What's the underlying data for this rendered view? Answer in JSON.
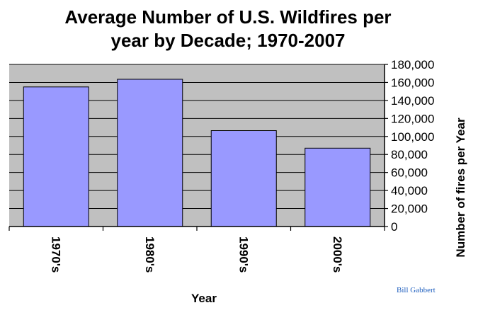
{
  "chart_data": {
    "type": "bar",
    "title_lines": [
      "Average Number of U.S. Wildfires per",
      "year by Decade; 1970-2007"
    ],
    "categories": [
      "1970's",
      "1980's",
      "1990's",
      "2000's"
    ],
    "values": [
      155000,
      163500,
      106500,
      87000
    ],
    "xlabel": "Year",
    "ylabel": "Number of fires per Year",
    "ylim": [
      0,
      180000
    ],
    "y_ticks": [
      0,
      20000,
      40000,
      60000,
      80000,
      100000,
      120000,
      140000,
      160000,
      180000
    ],
    "y_tick_labels": [
      "0",
      "20,000",
      "40,000",
      "60,000",
      "80,000",
      "100,000",
      "120,000",
      "140,000",
      "160,000",
      "180,000"
    ],
    "y_axis_side": "right",
    "grid": true,
    "legend": "none",
    "colors": {
      "bar_fill": "#9999ff",
      "bar_stroke": "#000000",
      "plot_background": "#c0c0c0",
      "gridline": "#000000"
    }
  },
  "credit": {
    "text": "Bill Gabbert",
    "color": "#1f5fbf"
  }
}
